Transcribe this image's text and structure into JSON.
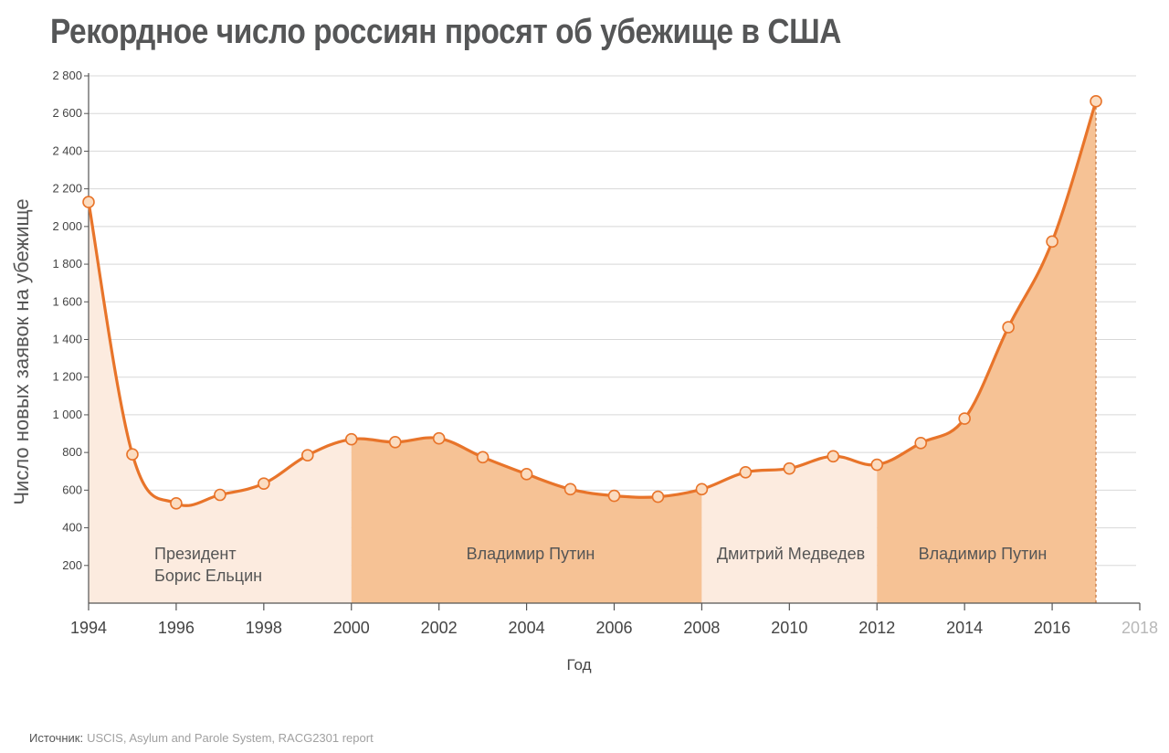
{
  "title": "Рекордное число россиян просят об убежище в США",
  "source": {
    "label": "Источник:",
    "text": "USCIS, Asylum and Parole System, RACG2301 report"
  },
  "colors": {
    "line": "#e8742a",
    "marker_fill": "#fbdcc0",
    "marker_stroke": "#e8742a",
    "area_light": "#fcebdf",
    "area_dark": "#f6c295",
    "grid": "#d8d8d8",
    "axis": "#555555"
  },
  "chart_data": {
    "type": "area",
    "xlabel": "Год",
    "ylabel": "Число новых заявок на убежище",
    "x": [
      1994,
      1995,
      1996,
      1997,
      1998,
      1999,
      2000,
      2001,
      2002,
      2003,
      2004,
      2005,
      2006,
      2007,
      2008,
      2009,
      2010,
      2011,
      2012,
      2013,
      2014,
      2015,
      2016,
      2017
    ],
    "values": [
      2130,
      790,
      530,
      575,
      635,
      785,
      870,
      855,
      875,
      775,
      685,
      605,
      570,
      565,
      605,
      695,
      715,
      780,
      735,
      850,
      980,
      1465,
      1920,
      2665
    ],
    "xlim": [
      1994,
      2018
    ],
    "ylim": [
      0,
      2800
    ],
    "x_ticks": [
      1994,
      1996,
      1998,
      2000,
      2002,
      2004,
      2006,
      2008,
      2010,
      2012,
      2014,
      2016,
      2018
    ],
    "x_tick_labels": [
      "1994",
      "1996",
      "1998",
      "2000",
      "2002",
      "2004",
      "2006",
      "2008",
      "2010",
      "2012",
      "2014",
      "2016",
      "2018"
    ],
    "y_ticks": [
      200,
      400,
      600,
      800,
      1000,
      1200,
      1400,
      1600,
      1800,
      2000,
      2200,
      2400,
      2600,
      2800
    ],
    "y_tick_labels": [
      "200",
      "400",
      "600",
      "800",
      "1 000",
      "1 200",
      "1 400",
      "1 600",
      "1 800",
      "2 000",
      "2 200",
      "2 400",
      "2 600",
      "2 800"
    ],
    "eras": [
      {
        "start": 1994,
        "end": 2000,
        "label_lines": [
          "Президент",
          "Борис Ельцин"
        ],
        "shade": "light"
      },
      {
        "start": 2000,
        "end": 2008,
        "label_lines": [
          "Владимир Путин"
        ],
        "shade": "dark"
      },
      {
        "start": 2008,
        "end": 2012,
        "label_lines": [
          "Дмитрий Медведев"
        ],
        "shade": "light"
      },
      {
        "start": 2012,
        "end": 2017,
        "label_lines": [
          "Владимир Путин"
        ],
        "shade": "dark"
      }
    ],
    "grid": true
  }
}
